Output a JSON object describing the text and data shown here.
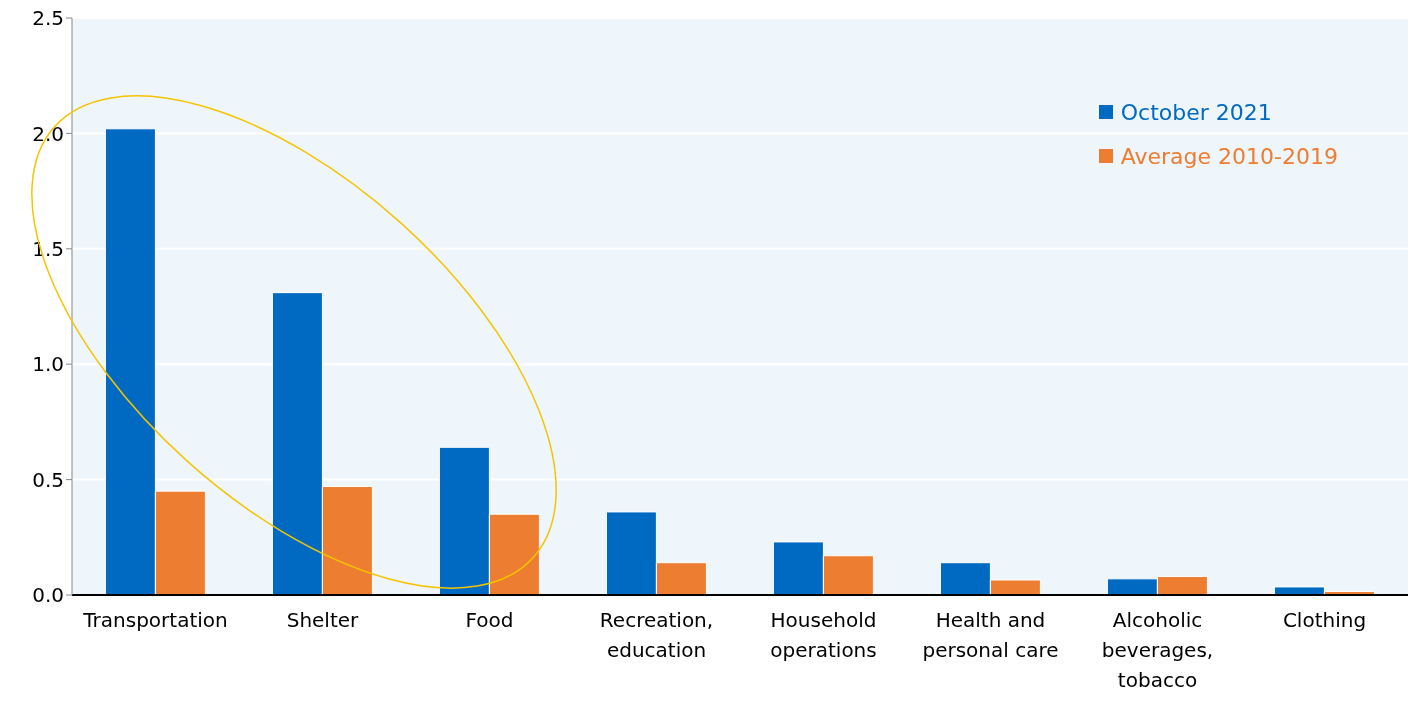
{
  "chart_data": {
    "type": "bar",
    "categories": [
      "Transportation",
      "Shelter",
      "Food",
      "Recreation, education",
      "Household operations",
      "Health and personal care",
      "Alcoholic beverages, tobacco",
      "Clothing"
    ],
    "series": [
      {
        "name": "October 2021",
        "color": "#006ac2",
        "values": [
          2.02,
          1.31,
          0.64,
          0.36,
          0.23,
          0.14,
          0.07,
          0.035
        ]
      },
      {
        "name": "Average 2010-2019",
        "color": "#ed7d31",
        "values": [
          0.45,
          0.47,
          0.35,
          0.14,
          0.17,
          0.065,
          0.08,
          0.015
        ]
      }
    ],
    "ylim": [
      0,
      2.5
    ],
    "yticks": [
      {
        "value": 0,
        "label": "0.0"
      },
      {
        "value": 0.5,
        "label": "0.5"
      },
      {
        "value": 1,
        "label": "1.0"
      },
      {
        "value": 1.5,
        "label": "1.5"
      },
      {
        "value": 2,
        "label": "2.0"
      },
      {
        "value": 2.5,
        "label": "2.5"
      }
    ],
    "grid": "y",
    "legend": "top right"
  }
}
